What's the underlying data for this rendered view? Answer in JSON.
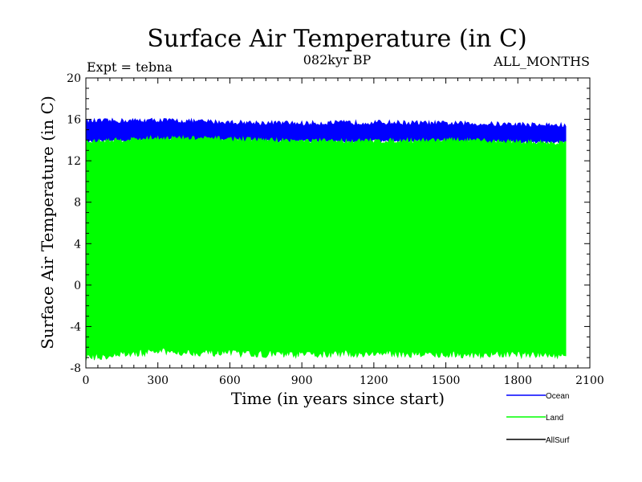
{
  "chart_data": {
    "type": "area",
    "title": "Surface Air Temperature (in C)",
    "subtitle": "082kyr BP",
    "left_note": "Expt = tebna",
    "right_note": "ALL_MONTHS",
    "xlabel": "Time (in years since start)",
    "ylabel": "Surface Air Temperature (in C)",
    "xlim": [
      0,
      2100
    ],
    "ylim": [
      -8,
      20
    ],
    "xticks": [
      0,
      300,
      600,
      900,
      1200,
      1500,
      1800,
      2100
    ],
    "yticks": [
      -8,
      -4,
      0,
      4,
      8,
      12,
      16,
      20
    ],
    "x_tick_labels": [
      "0",
      "300",
      "600",
      "900",
      "1200",
      "1500",
      "1800",
      "2100"
    ],
    "y_tick_labels": [
      "-8",
      "-4",
      "0",
      "4",
      "8",
      "12",
      "16",
      "20"
    ],
    "series": [
      {
        "name": "Ocean",
        "color": "#0000ff",
        "x_range": [
          0,
          2000
        ],
        "band_low": [
          [
            0,
            13.9
          ],
          [
            300,
            14.1
          ],
          [
            600,
            14.0
          ],
          [
            900,
            13.9
          ],
          [
            1200,
            13.9
          ],
          [
            1500,
            13.9
          ],
          [
            1800,
            13.8
          ],
          [
            2000,
            13.8
          ]
        ],
        "band_high": [
          [
            0,
            15.8
          ],
          [
            300,
            15.9
          ],
          [
            600,
            15.7
          ],
          [
            900,
            15.6
          ],
          [
            1200,
            15.7
          ],
          [
            1500,
            15.6
          ],
          [
            1800,
            15.5
          ],
          [
            2000,
            15.4
          ]
        ]
      },
      {
        "name": "Land",
        "color": "#00ff00",
        "x_range": [
          0,
          2000
        ],
        "band_low": [
          [
            0,
            -7.0
          ],
          [
            300,
            -6.4
          ],
          [
            600,
            -6.6
          ],
          [
            900,
            -6.7
          ],
          [
            1200,
            -6.6
          ],
          [
            1500,
            -6.7
          ],
          [
            1800,
            -6.7
          ],
          [
            2000,
            -6.8
          ]
        ],
        "band_high": [
          [
            0,
            13.8
          ],
          [
            300,
            14.2
          ],
          [
            600,
            14.1
          ],
          [
            900,
            13.9
          ],
          [
            1200,
            13.9
          ],
          [
            1500,
            14.0
          ],
          [
            1800,
            13.8
          ],
          [
            2000,
            13.7
          ]
        ]
      },
      {
        "name": "AllSurf",
        "color": "#000000",
        "x_range": [
          0,
          2000
        ],
        "band_low": [],
        "band_high": []
      }
    ],
    "legend_position": "bottom-right"
  }
}
